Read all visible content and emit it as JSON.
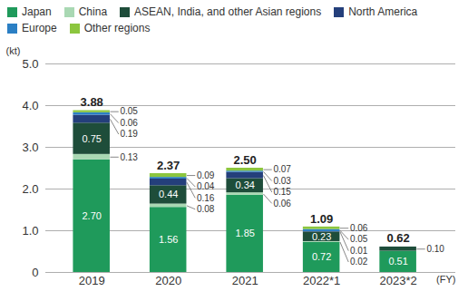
{
  "chart_data": {
    "type": "bar",
    "stacked": true,
    "data_labels": true,
    "grid": true,
    "legend": "top",
    "y_label": "(kt)",
    "x_label": "(FY)",
    "categories": [
      "2019",
      "2020",
      "2021",
      "2022*1",
      "2023*2"
    ],
    "ylim": [
      0,
      5
    ],
    "yticks": [
      0,
      {
        "value": 1,
        "label": "1.0"
      },
      {
        "value": 2,
        "label": "2.0"
      },
      {
        "value": 3,
        "label": "3.0"
      },
      {
        "value": 4,
        "label": "4.0"
      },
      {
        "value": 5,
        "label": "5.0"
      }
    ],
    "series": [
      {
        "name": "Japan",
        "color": "#1f9a5b",
        "values": [
          2.7,
          1.56,
          1.85,
          0.72,
          0.51
        ],
        "value_labels": [
          "2.70",
          "1.56",
          "1.85",
          "0.72",
          "0.51"
        ]
      },
      {
        "name": "China",
        "color": "#a9d8b3",
        "values": [
          0.13,
          0.08,
          0.06,
          0.02,
          null
        ],
        "value_labels": [
          "0.13",
          "0.08",
          "0.06",
          "0.02",
          null
        ]
      },
      {
        "name": "ASEAN, India, and other Asian regions",
        "color": "#1e4d3a",
        "values": [
          0.75,
          0.44,
          0.34,
          0.23,
          0.1
        ],
        "value_labels": [
          "0.75",
          "0.44",
          "0.34",
          "0.23",
          "0.10"
        ]
      },
      {
        "name": "North America",
        "color": "#243f7b",
        "values": [
          0.19,
          0.16,
          0.15,
          0.01,
          null
        ],
        "value_labels": [
          "0.19",
          "0.16",
          "0.15",
          "0.01",
          null
        ]
      },
      {
        "name": "Europe",
        "color": "#2b7fc4",
        "values": [
          0.06,
          0.04,
          0.03,
          0.05,
          null
        ],
        "value_labels": [
          "0.06",
          "0.04",
          "0.03",
          "0.05",
          null
        ]
      },
      {
        "name": "Other regions",
        "color": "#8cc63e",
        "values": [
          0.05,
          0.09,
          0.07,
          0.06,
          null
        ],
        "value_labels": [
          "0.05",
          "0.09",
          "0.07",
          "0.06",
          null
        ]
      }
    ],
    "totals": {
      "values": [
        3.88,
        2.37,
        2.5,
        1.09,
        0.62
      ],
      "value_labels": [
        "3.88",
        "2.37",
        "2.50",
        "1.09",
        "0.62"
      ]
    }
  }
}
